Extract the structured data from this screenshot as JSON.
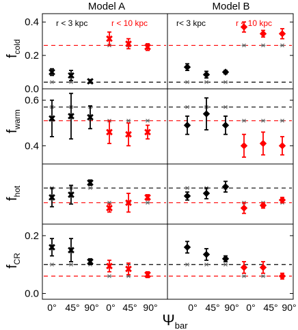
{
  "colors": {
    "inner": "#000000",
    "outer": "#ff0000",
    "reference_marker": "#555555"
  },
  "chart_data": {
    "type": "scatter",
    "columns": [
      {
        "model": "Model A",
        "radius": "r < 3 kpc",
        "label_color": "#000000"
      },
      {
        "model": "Model A",
        "radius": "r < 10 kpc",
        "label_color": "#ff0000"
      },
      {
        "model": "Model B",
        "radius": "r< 3 kpc",
        "label_color": "#000000"
      },
      {
        "model": "Model B",
        "radius": "r < 10 kpc",
        "label_color": "#ff0000"
      }
    ],
    "model_titles": [
      "Model A",
      "Model B"
    ],
    "categories": [
      "0°",
      "45°",
      "90°"
    ],
    "markers": {
      "Model A": "x-marker",
      "Model B": "diamond-marker"
    },
    "xlabel": {
      "main": "Ψ",
      "sub": "bar"
    },
    "panels": [
      {
        "ylabel": {
          "main": "f",
          "sub": "cold"
        },
        "ylim": [
          0.0,
          0.45
        ],
        "yticks": [
          "0.0",
          "0.2",
          "0.4"
        ],
        "ytick_values": [
          0.0,
          0.2,
          0.4
        ],
        "series": [
          {
            "model": "Model A",
            "radius": "r < 3 kpc",
            "color": "#000000",
            "values": [
              0.1,
              0.08,
              0.045
            ],
            "errors": [
              0.02,
              0.03,
              0.01
            ],
            "reference": [
              0.04,
              0.04,
              0.04
            ],
            "dashed": 0.04
          },
          {
            "model": "Model A",
            "radius": "r < 10 kpc",
            "color": "#ff0000",
            "values": [
              0.3,
              0.27,
              0.25
            ],
            "errors": [
              0.04,
              0.03,
              0.02
            ],
            "reference": [
              0.26,
              0.26,
              0.26
            ],
            "dashed": 0.26
          },
          {
            "model": "Model B",
            "radius": "r< 3 kpc",
            "color": "#000000",
            "values": [
              0.13,
              0.085,
              0.1
            ],
            "errors": [
              0.02,
              0.02,
              0.01
            ],
            "reference": [
              0.04,
              0.04,
              0.04
            ],
            "dashed": 0.04
          },
          {
            "model": "Model B",
            "radius": "r < 10 kpc",
            "color": "#ff0000",
            "values": [
              0.37,
              0.33,
              0.33
            ],
            "errors": [
              0.03,
              0.02,
              0.03
            ],
            "reference": [
              0.26,
              0.26,
              0.26
            ],
            "dashed": 0.26
          }
        ]
      },
      {
        "ylabel": {
          "main": "f",
          "sub": "warm"
        },
        "ylim": [
          0.32,
          0.65
        ],
        "yticks": [
          "0.4",
          "0.6"
        ],
        "ytick_values": [
          0.4,
          0.6
        ],
        "series": [
          {
            "model": "Model A",
            "radius": "r < 3 kpc",
            "color": "#000000",
            "values": [
              0.52,
              0.53,
              0.525
            ],
            "errors": [
              0.08,
              0.1,
              0.05
            ],
            "reference": [
              0.57,
              0.57,
              0.57
            ],
            "dashed": 0.57
          },
          {
            "model": "Model A",
            "radius": "r < 10 kpc",
            "color": "#ff0000",
            "values": [
              0.46,
              0.45,
              0.46
            ],
            "errors": [
              0.05,
              0.05,
              0.03
            ],
            "reference": [
              0.51,
              0.51,
              0.51
            ],
            "dashed": 0.51
          },
          {
            "model": "Model B",
            "radius": "r< 3 kpc",
            "color": "#000000",
            "values": [
              0.49,
              0.54,
              0.49
            ],
            "errors": [
              0.04,
              0.07,
              0.04
            ],
            "reference": [
              0.57,
              0.57,
              0.57
            ],
            "dashed": 0.57
          },
          {
            "model": "Model B",
            "radius": "r < 10 kpc",
            "color": "#ff0000",
            "values": [
              0.4,
              0.41,
              0.4
            ],
            "errors": [
              0.05,
              0.05,
              0.04
            ],
            "reference": [
              0.51,
              0.51,
              0.51
            ],
            "dashed": 0.51
          }
        ]
      },
      {
        "ylabel": {
          "main": "f",
          "sub": "hot"
        },
        "ylim": [
          0.0,
          0.45
        ],
        "yticks": [],
        "ytick_values": [],
        "series": [
          {
            "model": "Model A",
            "radius": "r < 3 kpc",
            "color": "#000000",
            "values": [
              0.2,
              0.22,
              0.31
            ],
            "errors": [
              0.07,
              0.07,
              0.02
            ],
            "reference": [
              0.27,
              0.27,
              0.27
            ],
            "dashed": 0.27
          },
          {
            "model": "Model A",
            "radius": "r < 10 kpc",
            "color": "#ff0000",
            "values": [
              0.12,
              0.16,
              0.2
            ],
            "errors": [
              0.03,
              0.07,
              0.02
            ],
            "reference": [
              0.16,
              0.16,
              0.16
            ],
            "dashed": 0.16
          },
          {
            "model": "Model B",
            "radius": "r< 3 kpc",
            "color": "#000000",
            "values": [
              0.21,
              0.23,
              0.28
            ],
            "errors": [
              0.03,
              0.04,
              0.04
            ],
            "reference": [
              0.27,
              0.27,
              0.27
            ],
            "dashed": 0.27
          },
          {
            "model": "Model B",
            "radius": "r < 10 kpc",
            "color": "#ff0000",
            "values": [
              0.12,
              0.14,
              0.18
            ],
            "errors": [
              0.04,
              0.02,
              0.02
            ],
            "reference": [
              0.16,
              0.16,
              0.16
            ],
            "dashed": 0.16
          }
        ]
      },
      {
        "ylabel": {
          "main": "f",
          "sub": "CR"
        },
        "ylim": [
          -0.02,
          0.24
        ],
        "yticks": [
          "0.0",
          "0.2"
        ],
        "ytick_values": [
          0.0,
          0.2
        ],
        "series": [
          {
            "model": "Model A",
            "radius": "r < 3 kpc",
            "color": "#000000",
            "values": [
              0.16,
              0.15,
              0.11
            ],
            "errors": [
              0.03,
              0.04,
              0.01
            ],
            "reference": [
              0.1,
              0.1,
              0.1
            ],
            "dashed": 0.1
          },
          {
            "model": "Model A",
            "radius": "r < 10 kpc",
            "color": "#ff0000",
            "values": [
              0.095,
              0.085,
              0.065
            ],
            "errors": [
              0.02,
              0.02,
              0.01
            ],
            "reference": [
              0.06,
              0.06,
              0.06
            ],
            "dashed": 0.06
          },
          {
            "model": "Model B",
            "radius": "r< 3 kpc",
            "color": "#000000",
            "values": [
              0.16,
              0.135,
              0.12
            ],
            "errors": [
              0.02,
              0.02,
              0.01
            ],
            "reference": [
              0.1,
              0.1,
              0.1
            ],
            "dashed": 0.1
          },
          {
            "model": "Model B",
            "radius": "r < 10 kpc",
            "color": "#ff0000",
            "values": [
              0.09,
              0.09,
              0.06
            ],
            "errors": [
              0.02,
              0.02,
              0.01
            ],
            "reference": [
              0.06,
              0.06,
              0.06
            ],
            "dashed": 0.06
          }
        ]
      }
    ]
  }
}
